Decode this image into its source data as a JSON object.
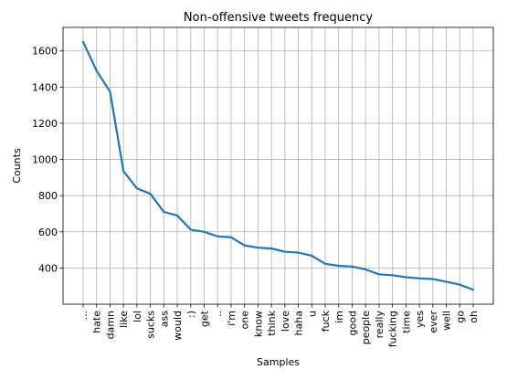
{
  "chart_data": {
    "type": "line",
    "title": "Non-offensive tweets frequency",
    "xlabel": "Samples",
    "ylabel": "Counts",
    "categories": [
      "...",
      "hate",
      "damn",
      "like",
      "lol",
      "sucks",
      "ass",
      "would",
      ":)",
      "get",
      "..",
      "i'm",
      "one",
      "know",
      "think",
      "love",
      "haha",
      "u",
      "fuck",
      "im",
      "good",
      "people",
      "really",
      "fucking",
      "time",
      "yes",
      "ever",
      "well",
      "go",
      "oh"
    ],
    "series": [
      {
        "values": [
          1650,
          1490,
          1375,
          935,
          840,
          810,
          710,
          690,
          612,
          600,
          575,
          570,
          525,
          512,
          508,
          490,
          485,
          468,
          423,
          412,
          408,
          392,
          365,
          360,
          349,
          343,
          339,
          324,
          308,
          280
        ],
        "color": "#1f77b4"
      }
    ],
    "ylim": [
      200,
      1730
    ],
    "yticks": [
      400,
      600,
      800,
      1000,
      1200,
      1400,
      1600
    ],
    "grid": true,
    "xtick_rotation": 90
  }
}
